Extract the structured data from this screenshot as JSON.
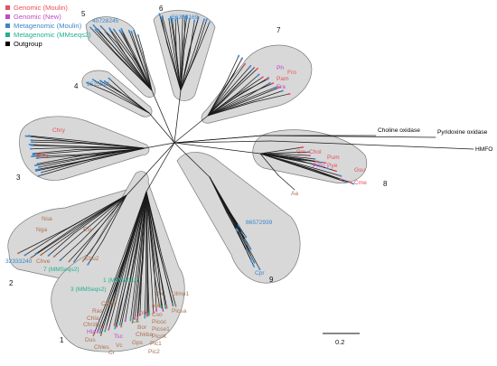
{
  "colors": {
    "genomic_moulin": "#e8505b",
    "genomic_new": "#c248c7",
    "metagenomic_moulin": "#3c86c9",
    "metagenomic_mmseqs2": "#22b08f",
    "outgroup": "#000000",
    "extra_brown": "#b07050",
    "hull_fill": "#d8d8d8"
  },
  "legend": [
    {
      "label": "Genomic (Moulin)",
      "color": "#e8505b"
    },
    {
      "label": "Genomic (New)",
      "color": "#c248c7"
    },
    {
      "label": "Metagenomic (Moulin)",
      "color": "#3c86c9"
    },
    {
      "label": "Metagenomic (MMseqs2)",
      "color": "#22b08f"
    },
    {
      "label": "Outgroup",
      "color": "#000000"
    }
  ],
  "clade_numbers": [
    "1",
    "2",
    "3",
    "4",
    "5",
    "6",
    "7",
    "8",
    "9"
  ],
  "scale_bar": {
    "label": "0.2",
    "value": 0.2
  },
  "leaf_labels": {
    "n40728245": "40728245",
    "n56375169": "56375169",
    "n9525881": "9525881",
    "n86572939": "86572939",
    "n32333240": "32333240",
    "fro": "Fro",
    "pam": "Pam",
    "fra": "Fra",
    "ph": "Ph",
    "chry": "Chry",
    "ehr1": "Ehr1",
    "gm": "Gm",
    "chol": "Chol",
    "pum": "Pum",
    "pye": "Pye",
    "pmu": "Pmu",
    "gsu": "Gsu",
    "cme": "Cme",
    "aa": "Aa",
    "cpr": "Cpr",
    "nsa": "Nsa",
    "nga": "Nga",
    "esi": "Esi",
    "chve": "Chve",
    "ehu2": "Ehu2",
    "mm7": "7 (MMSeqs2)",
    "mm1": "1 (MMSeqs2)",
    "mm3": "3 (MMSeqs2)",
    "chbb": "Chbb",
    "ras": "Ras",
    "chla": "Chla",
    "chrzb": "Chrzb",
    "hla": "Hla",
    "dus": "Dus",
    "chles": "Chles",
    "cr": "Cr",
    "vc": "Vc",
    "tsc": "Tsc",
    "cs": "Cs",
    "lob": "Lob",
    "bor": "Bor",
    "chkba": "Chkba",
    "gps": "Gps",
    "cso": "Cso",
    "picoc": "Picoc",
    "picse1": "Picse1",
    "picok": "Picok",
    "pic1": "Pic1",
    "pic2": "Pic2",
    "ulmu1": "Ulmu1",
    "picsa": "Picsa",
    "ox": "Ox",
    "mic": "Mic",
    "choline_oxidase": "Choline oxidase",
    "pyridoxine_oxidase": "Pyridoxine oxidase",
    "hmfo": "HMFO"
  }
}
